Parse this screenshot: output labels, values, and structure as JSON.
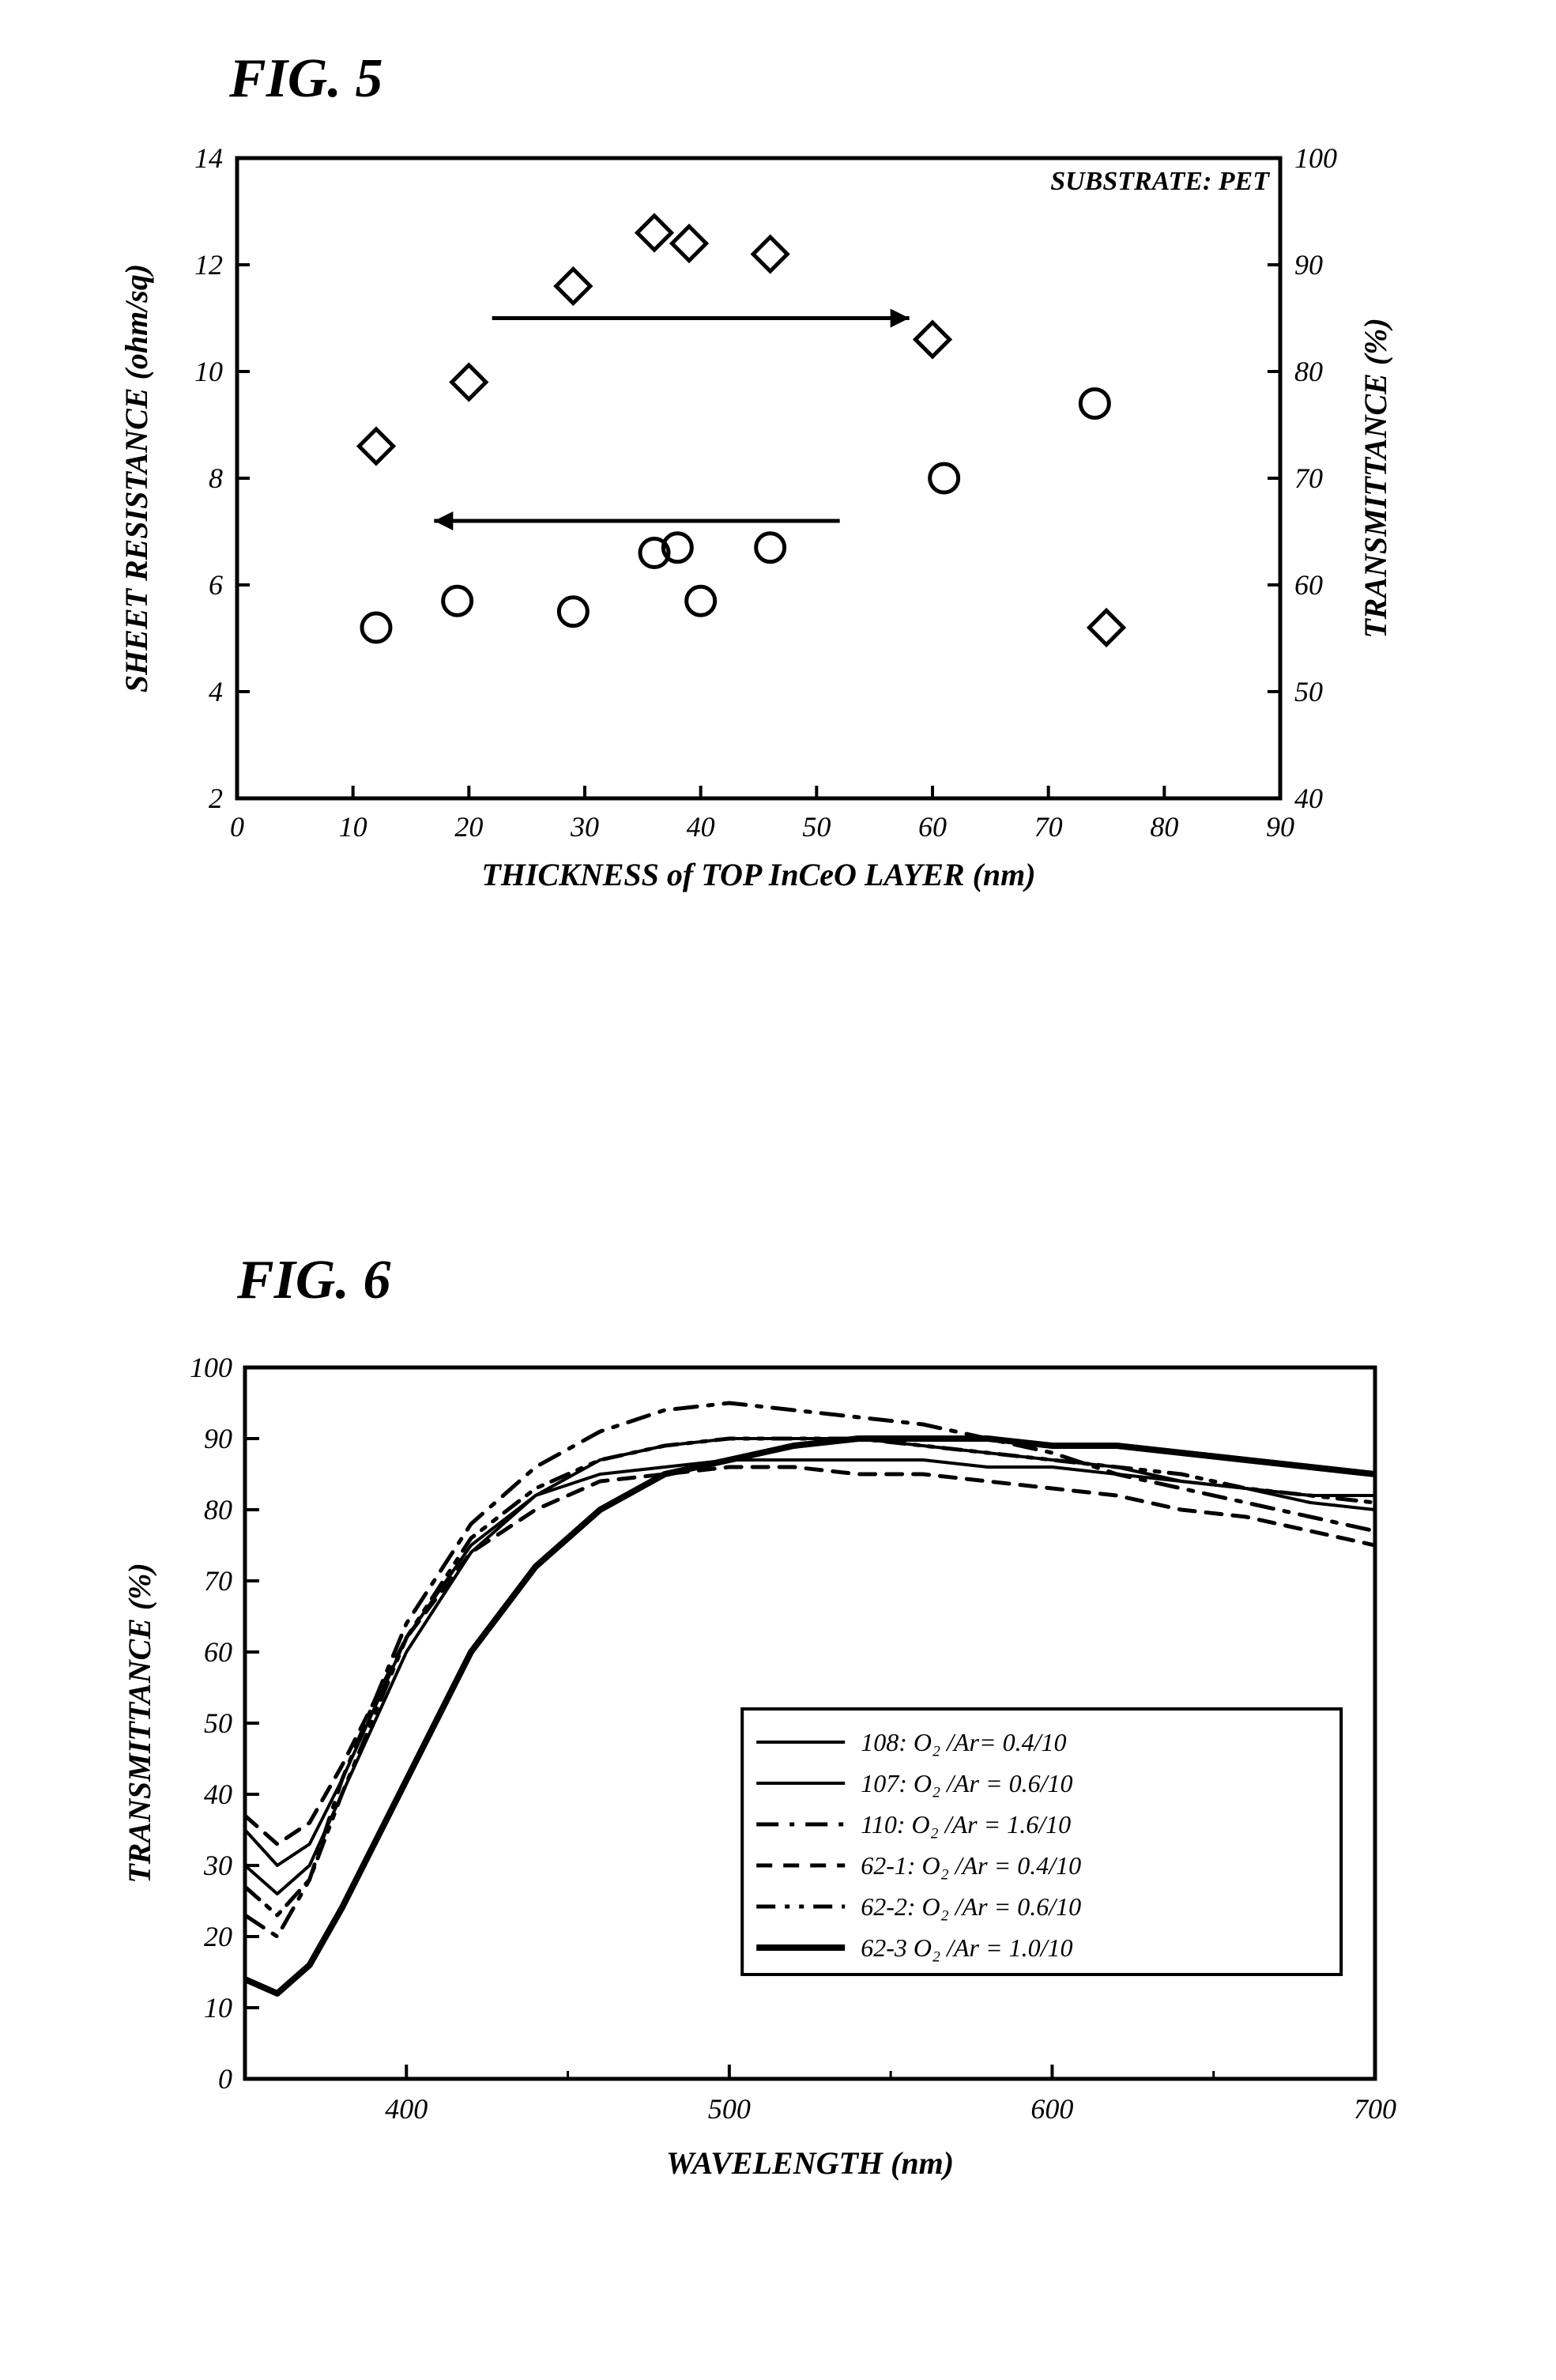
{
  "fig5": {
    "title": "FIG. 5",
    "type": "scatter_dual_axis",
    "annotation": "SUBSTRATE: PET",
    "x_label": "THICKNESS of TOP InCeO LAYER (nm)",
    "y_left_label": "SHEET RESISTANCE (ohm/sq)",
    "y_right_label": "TRANSMITTANCE (%)",
    "xlim": [
      0,
      90
    ],
    "y_left_lim": [
      2,
      14
    ],
    "y_right_lim": [
      40,
      100
    ],
    "x_ticks": [
      0,
      10,
      20,
      30,
      40,
      50,
      60,
      70,
      80,
      90
    ],
    "y_left_ticks": [
      2,
      4,
      6,
      8,
      10,
      12,
      14
    ],
    "y_right_ticks": [
      40,
      50,
      60,
      70,
      80,
      90,
      100
    ],
    "left_arrow": {
      "from_x": 52,
      "to_x": 17,
      "y_left": 7.2
    },
    "right_arrow": {
      "from_x": 22,
      "to_x": 58,
      "y_left": 11.0
    },
    "series_circle": {
      "marker": "circle",
      "axis": "left",
      "points": [
        {
          "x": 12,
          "y": 5.2
        },
        {
          "x": 19,
          "y": 5.7
        },
        {
          "x": 29,
          "y": 5.5
        },
        {
          "x": 36,
          "y": 6.6
        },
        {
          "x": 38,
          "y": 6.7
        },
        {
          "x": 40,
          "y": 5.7
        },
        {
          "x": 46,
          "y": 6.7
        },
        {
          "x": 61,
          "y": 8.0
        },
        {
          "x": 74,
          "y": 9.4
        }
      ]
    },
    "series_diamond": {
      "marker": "diamond",
      "axis": "right",
      "points": [
        {
          "x": 12,
          "y": 73
        },
        {
          "x": 20,
          "y": 79
        },
        {
          "x": 29,
          "y": 88
        },
        {
          "x": 36,
          "y": 93
        },
        {
          "x": 39,
          "y": 92
        },
        {
          "x": 46,
          "y": 91
        },
        {
          "x": 60,
          "y": 83
        },
        {
          "x": 75,
          "y": 56
        }
      ]
    },
    "tick_fontsize": 36,
    "label_fontsize": 40,
    "annotation_fontsize": 34,
    "marker_size": 36,
    "stroke_width": 5,
    "background_color": "#ffffff",
    "axis_color": "#000000"
  },
  "fig6": {
    "title": "FIG. 6",
    "type": "line",
    "x_label": "WAVELENGTH (nm)",
    "y_label": "TRANSMITTANCE (%)",
    "xlim": [
      350,
      700
    ],
    "ylim": [
      0,
      100
    ],
    "x_ticks": [
      400,
      500,
      600,
      700
    ],
    "y_ticks": [
      0,
      10,
      20,
      30,
      40,
      50,
      60,
      70,
      80,
      90,
      100
    ],
    "tick_fontsize": 36,
    "label_fontsize": 40,
    "legend_fontsize": 32,
    "stroke_width": 5,
    "background_color": "#ffffff",
    "axis_color": "#000000",
    "legend": [
      {
        "label": "108: O₂ /Ar= 0.4/10",
        "style": "solid_thin"
      },
      {
        "label": "107: O₂ /Ar = 0.6/10",
        "style": "solid_thin2"
      },
      {
        "label": "110: O₂ /Ar = 1.6/10",
        "style": "dashdot"
      },
      {
        "label": "62-1: O₂ /Ar = 0.4/10",
        "style": "dashed"
      },
      {
        "label": "62-2: O₂ /Ar = 0.6/10",
        "style": "dashdotdot"
      },
      {
        "label": "62-3 O₂ /Ar = 1.0/10",
        "style": "solid_thick"
      }
    ],
    "series": {
      "108": {
        "style": "solid_thin",
        "pts": [
          [
            350,
            35
          ],
          [
            360,
            30
          ],
          [
            370,
            33
          ],
          [
            380,
            42
          ],
          [
            400,
            62
          ],
          [
            420,
            75
          ],
          [
            440,
            82
          ],
          [
            460,
            85
          ],
          [
            480,
            86
          ],
          [
            500,
            87
          ],
          [
            520,
            87
          ],
          [
            540,
            87
          ],
          [
            560,
            87
          ],
          [
            580,
            86
          ],
          [
            600,
            86
          ],
          [
            620,
            85
          ],
          [
            640,
            84
          ],
          [
            660,
            83
          ],
          [
            680,
            82
          ],
          [
            700,
            82
          ]
        ]
      },
      "107": {
        "style": "solid_thin2",
        "pts": [
          [
            350,
            30
          ],
          [
            360,
            26
          ],
          [
            370,
            30
          ],
          [
            380,
            40
          ],
          [
            400,
            60
          ],
          [
            420,
            74
          ],
          [
            440,
            82
          ],
          [
            460,
            87
          ],
          [
            480,
            89
          ],
          [
            500,
            90
          ],
          [
            520,
            90
          ],
          [
            540,
            90
          ],
          [
            560,
            89
          ],
          [
            580,
            88
          ],
          [
            600,
            87
          ],
          [
            620,
            86
          ],
          [
            640,
            84
          ],
          [
            660,
            83
          ],
          [
            680,
            81
          ],
          [
            700,
            80
          ]
        ]
      },
      "110": {
        "style": "dashdot",
        "pts": [
          [
            350,
            23
          ],
          [
            360,
            20
          ],
          [
            370,
            28
          ],
          [
            380,
            42
          ],
          [
            400,
            64
          ],
          [
            420,
            78
          ],
          [
            440,
            86
          ],
          [
            460,
            91
          ],
          [
            480,
            94
          ],
          [
            500,
            95
          ],
          [
            520,
            94
          ],
          [
            540,
            93
          ],
          [
            560,
            92
          ],
          [
            580,
            90
          ],
          [
            600,
            88
          ],
          [
            620,
            85
          ],
          [
            640,
            83
          ],
          [
            660,
            81
          ],
          [
            680,
            79
          ],
          [
            700,
            77
          ]
        ]
      },
      "62-1": {
        "style": "dashed",
        "pts": [
          [
            350,
            37
          ],
          [
            360,
            33
          ],
          [
            370,
            36
          ],
          [
            380,
            44
          ],
          [
            400,
            62
          ],
          [
            420,
            74
          ],
          [
            440,
            80
          ],
          [
            460,
            84
          ],
          [
            480,
            85
          ],
          [
            500,
            86
          ],
          [
            520,
            86
          ],
          [
            540,
            85
          ],
          [
            560,
            85
          ],
          [
            580,
            84
          ],
          [
            600,
            83
          ],
          [
            620,
            82
          ],
          [
            640,
            80
          ],
          [
            660,
            79
          ],
          [
            680,
            77
          ],
          [
            700,
            75
          ]
        ]
      },
      "62-2": {
        "style": "dashdotdot",
        "pts": [
          [
            350,
            27
          ],
          [
            360,
            23
          ],
          [
            370,
            28
          ],
          [
            380,
            40
          ],
          [
            400,
            62
          ],
          [
            420,
            76
          ],
          [
            440,
            83
          ],
          [
            460,
            87
          ],
          [
            480,
            89
          ],
          [
            500,
            90
          ],
          [
            520,
            90
          ],
          [
            540,
            90
          ],
          [
            560,
            89
          ],
          [
            580,
            88
          ],
          [
            600,
            87
          ],
          [
            620,
            86
          ],
          [
            640,
            85
          ],
          [
            660,
            83
          ],
          [
            680,
            82
          ],
          [
            700,
            81
          ]
        ]
      },
      "62-3": {
        "style": "solid_thick",
        "pts": [
          [
            350,
            14
          ],
          [
            360,
            12
          ],
          [
            370,
            16
          ],
          [
            380,
            24
          ],
          [
            400,
            42
          ],
          [
            420,
            60
          ],
          [
            440,
            72
          ],
          [
            460,
            80
          ],
          [
            480,
            85
          ],
          [
            500,
            87
          ],
          [
            520,
            89
          ],
          [
            540,
            90
          ],
          [
            560,
            90
          ],
          [
            580,
            90
          ],
          [
            600,
            89
          ],
          [
            620,
            89
          ],
          [
            640,
            88
          ],
          [
            660,
            87
          ],
          [
            680,
            86
          ],
          [
            700,
            85
          ]
        ]
      }
    }
  }
}
